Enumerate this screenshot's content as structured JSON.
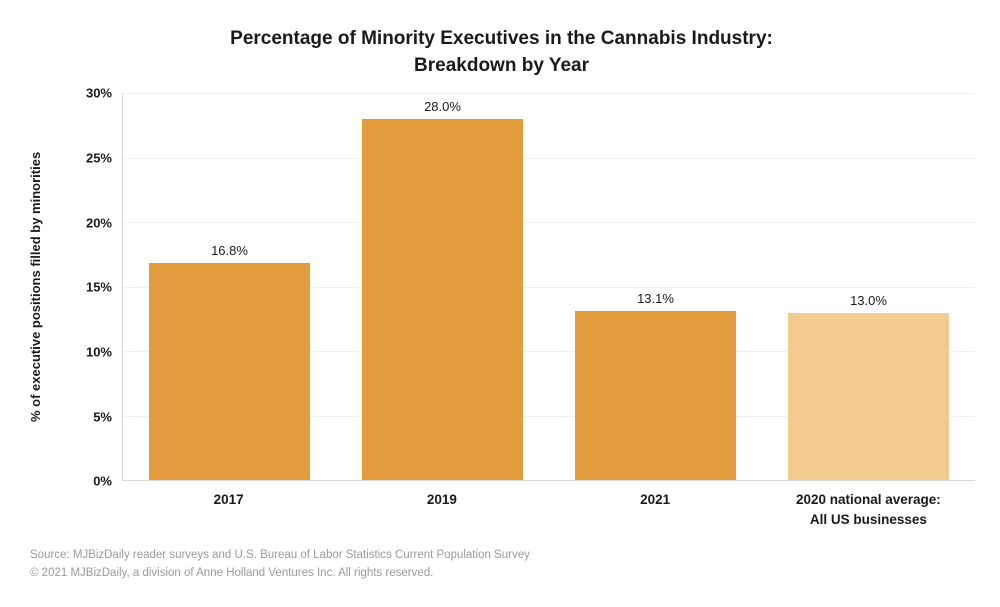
{
  "title": {
    "line1": "Percentage of Minority Executives in the Cannabis Industry:",
    "line2": "Breakdown by Year"
  },
  "chart_data": {
    "type": "bar",
    "categories": [
      "2017",
      "2019",
      "2021",
      "2020 national average:\nAll US businesses"
    ],
    "values": [
      16.8,
      28.0,
      13.1,
      13.0
    ],
    "value_labels": [
      "16.8%",
      "28.0%",
      "13.1%",
      "13.0%"
    ],
    "bar_colors": [
      "#E29C3D",
      "#E29C3D",
      "#E29C3D",
      "#F1CB90"
    ],
    "title": "Percentage of Minority Executives in the Cannabis Industry: Breakdown by Year",
    "xlabel": "",
    "ylabel": "% of executive positions filled by minorities",
    "ylim": [
      0,
      30
    ],
    "ytick_step": 5,
    "ytick_labels": [
      "0%",
      "5%",
      "10%",
      "15%",
      "20%",
      "25%",
      "30%"
    ],
    "grid": true,
    "legend": "none"
  },
  "footer": {
    "line1": "Source: MJBizDaily reader surveys and U.S. Bureau of Labor Statistics Current Population Survey",
    "line2": "© 2021 MJBizDaily, a division of Anne Holland Ventures Inc. All rights reserved."
  }
}
